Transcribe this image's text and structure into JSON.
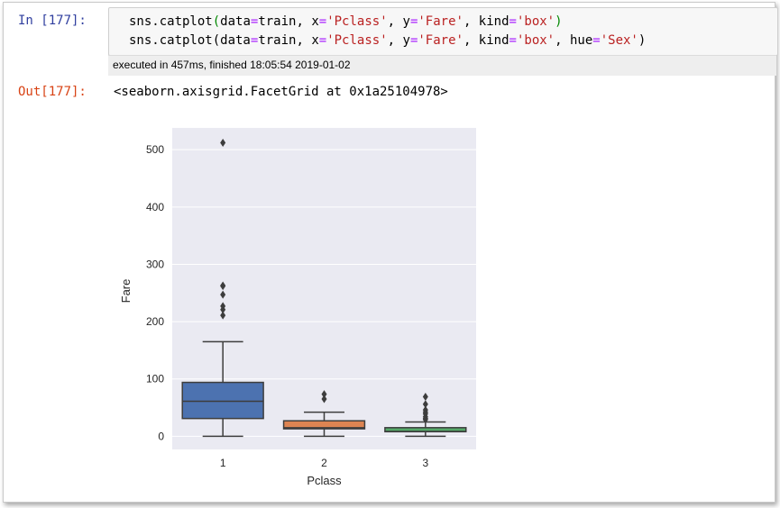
{
  "cell": {
    "in_prompt": "In [177]:",
    "code_lines": [
      {
        "fn": "sns.catplot",
        "data": "train",
        "x": "'Pclass'",
        "y": "'Fare'",
        "kind": "'box'",
        "hue": null
      },
      {
        "fn": "sns.catplot",
        "data": "train",
        "x": "'Pclass'",
        "y": "'Fare'",
        "kind": "'box'",
        "hue": "'Sex'"
      }
    ],
    "execution_info": "executed in 457ms, finished 18:05:54 2019-01-02",
    "out_prompt": "Out[177]:",
    "output_text": "<seaborn.axisgrid.FacetGrid at 0x1a25104978>"
  },
  "chart_data": {
    "type": "box",
    "xlabel": "Pclass",
    "ylabel": "Fare",
    "categories": [
      "1",
      "2",
      "3"
    ],
    "ylim": [
      -23,
      538
    ],
    "yticks": [
      0,
      100,
      200,
      300,
      400,
      500
    ],
    "grid": true,
    "boxes": [
      {
        "category": "1",
        "color": "#4c72b0",
        "whisker_low": 0,
        "q1": 31,
        "median": 61,
        "q3": 94,
        "whisker_high": 165,
        "outliers": [
          512,
          263,
          262,
          247,
          227,
          221,
          211
        ]
      },
      {
        "category": "2",
        "color": "#dd8452",
        "whisker_low": 0,
        "q1": 13,
        "median": 15,
        "q3": 27,
        "whisker_high": 42,
        "outliers": [
          73.5,
          65
        ]
      },
      {
        "category": "3",
        "color": "#55a868",
        "whisker_low": 0,
        "q1": 8,
        "median": 8.5,
        "q3": 15,
        "whisker_high": 25,
        "outliers": [
          29,
          31,
          34,
          39,
          42,
          46,
          56,
          69
        ]
      }
    ]
  }
}
